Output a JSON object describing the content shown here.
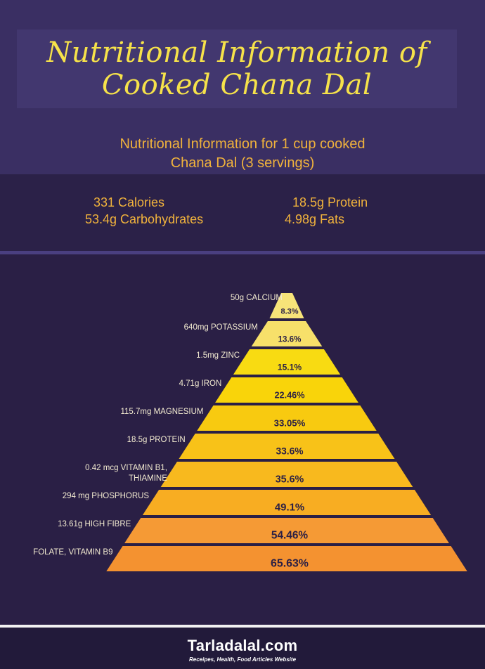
{
  "header": {
    "title_line1": "Nutritional Information of",
    "title_line2": "Cooked Chana Dal",
    "subtitle_line1": "Nutritional Information for 1 cup cooked",
    "subtitle_line2": "Chana Dal (3 servings)"
  },
  "summary": {
    "calories": "331 Calories",
    "protein": "18.5g Protein",
    "carbohydrates": "53.4g Carbohydrates",
    "fats": "4.98g Fats"
  },
  "pyramid": {
    "tiers": [
      {
        "label": "50g CALCIUM",
        "percent": "8.3%",
        "value": 8.3,
        "color": "#f7e479"
      },
      {
        "label": "640mg POTASSIUM",
        "percent": "13.6%",
        "value": 13.6,
        "color": "#f7e06a"
      },
      {
        "label": "1.5mg ZINC",
        "percent": "15.1%",
        "value": 15.1,
        "color": "#f8db12"
      },
      {
        "label": "4.71g IRON",
        "percent": "22.46%",
        "value": 22.46,
        "color": "#f9d40a"
      },
      {
        "label": "115.7mg MAGNESIUM",
        "percent": "33.05%",
        "value": 33.05,
        "color": "#f8ca10"
      },
      {
        "label": "18.5g PROTEIN",
        "percent": "33.6%",
        "value": 33.6,
        "color": "#f8c218"
      },
      {
        "label": "0.42 mcg VITAMIN B1,|THIAMINE",
        "percent": "35.6%",
        "value": 35.6,
        "color": "#f8b91e"
      },
      {
        "label": "294 mg PHOSPHORUS",
        "percent": "49.1%",
        "value": 49.1,
        "color": "#f8ad22"
      },
      {
        "label": "13.61g HIGH FIBRE",
        "percent": "54.46%",
        "value": 54.46,
        "color": "#f59a35"
      },
      {
        "label": "FOLATE, VITAMIN B9",
        "percent": "65.63%",
        "value": 65.63,
        "color": "#f49230"
      }
    ]
  },
  "colors": {
    "background": "#2a1f45",
    "header_band": "#3a2f63",
    "title_text": "#f6e24a",
    "accent_text": "#f0b23c"
  },
  "footer": {
    "brand": "Tarladalal.com",
    "tagline": "Receipes, Health, Food Articles Website"
  }
}
